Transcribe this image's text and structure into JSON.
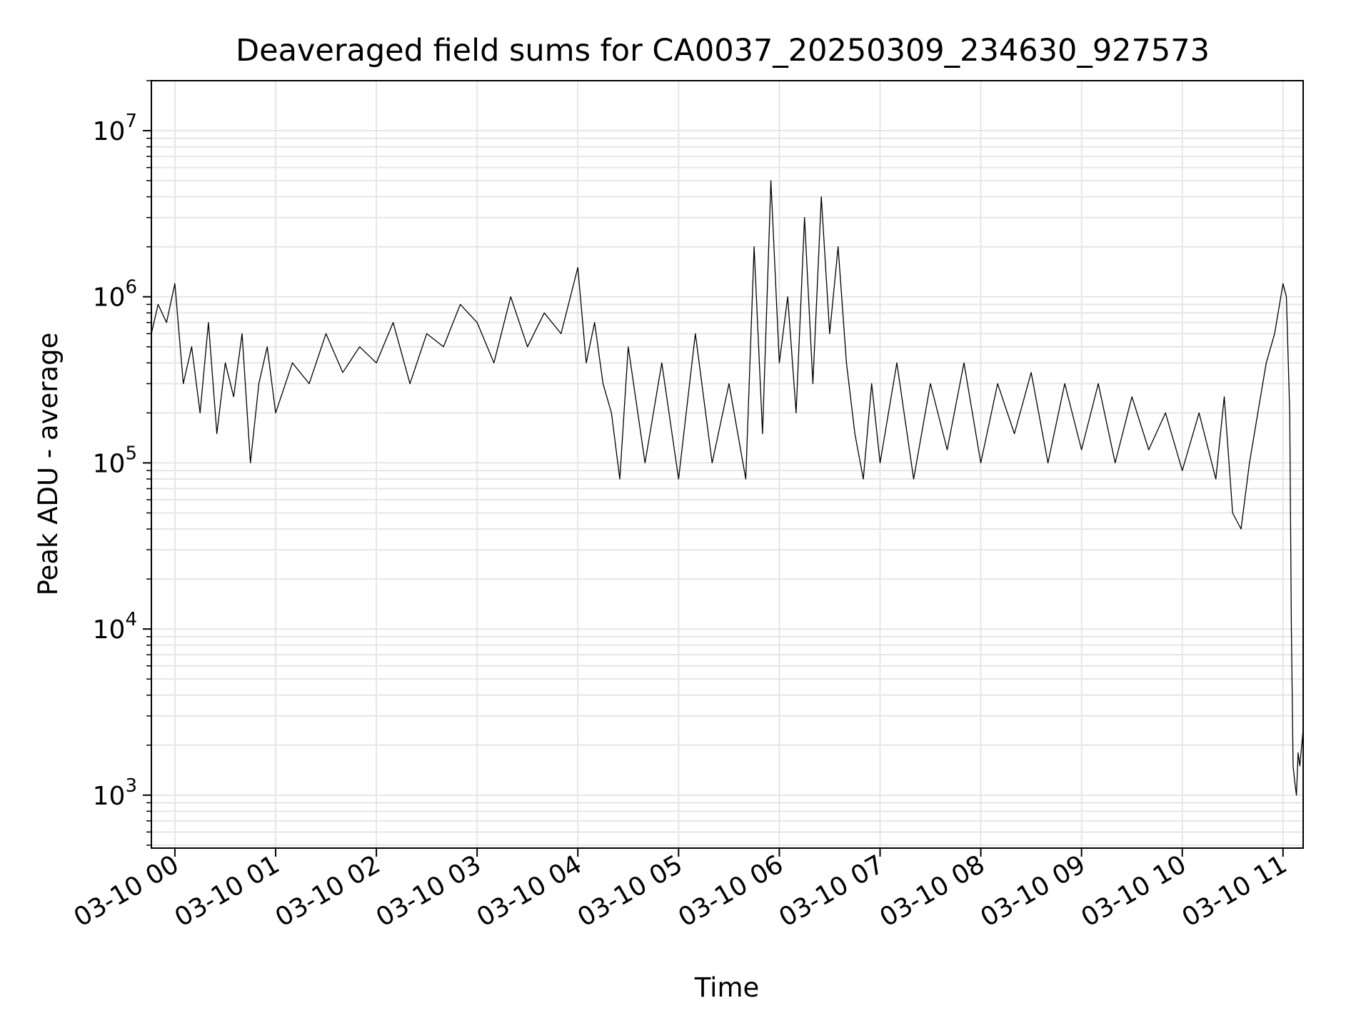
{
  "chart_data": {
    "type": "line",
    "title": "Deaveraged field sums for CA0037_20250309_234630_927573",
    "xlabel": "Time",
    "ylabel": "Peak ADU - average",
    "yscale": "log",
    "ylim": [
      480,
      20000000
    ],
    "xlim": [
      "2025-03-09 23:46",
      "2025-03-10 11:12"
    ],
    "grid": true,
    "line_color": "#000000",
    "x_tick_labels": [
      "03-10 00",
      "03-10 01",
      "03-10 02",
      "03-10 03",
      "03-10 04",
      "03-10 05",
      "03-10 06",
      "03-10 07",
      "03-10 08",
      "03-10 09",
      "03-10 10",
      "03-10 11"
    ],
    "y_ticks": [
      {
        "base": "10",
        "exp": "3",
        "value": 1000
      },
      {
        "base": "10",
        "exp": "4",
        "value": 10000
      },
      {
        "base": "10",
        "exp": "5",
        "value": 100000
      },
      {
        "base": "10",
        "exp": "6",
        "value": 1000000
      },
      {
        "base": "10",
        "exp": "7",
        "value": 10000000
      }
    ],
    "series": [
      {
        "x": [
          "2025-03-09 23:46",
          "2025-03-09 23:50",
          "2025-03-09 23:55",
          "2025-03-10 00:00",
          "2025-03-10 00:05",
          "2025-03-10 00:10",
          "2025-03-10 00:15",
          "2025-03-10 00:20",
          "2025-03-10 00:25",
          "2025-03-10 00:30",
          "2025-03-10 00:35",
          "2025-03-10 00:40",
          "2025-03-10 00:45",
          "2025-03-10 00:50",
          "2025-03-10 00:55",
          "2025-03-10 01:00",
          "2025-03-10 01:10",
          "2025-03-10 01:20",
          "2025-03-10 01:30",
          "2025-03-10 01:40",
          "2025-03-10 01:50",
          "2025-03-10 02:00",
          "2025-03-10 02:10",
          "2025-03-10 02:20",
          "2025-03-10 02:30",
          "2025-03-10 02:40",
          "2025-03-10 02:50",
          "2025-03-10 03:00",
          "2025-03-10 03:10",
          "2025-03-10 03:20",
          "2025-03-10 03:30",
          "2025-03-10 03:40",
          "2025-03-10 03:50",
          "2025-03-10 04:00",
          "2025-03-10 04:05",
          "2025-03-10 04:10",
          "2025-03-10 04:15",
          "2025-03-10 04:20",
          "2025-03-10 04:25",
          "2025-03-10 04:30",
          "2025-03-10 04:40",
          "2025-03-10 04:50",
          "2025-03-10 05:00",
          "2025-03-10 05:10",
          "2025-03-10 05:20",
          "2025-03-10 05:30",
          "2025-03-10 05:40",
          "2025-03-10 05:45",
          "2025-03-10 05:50",
          "2025-03-10 05:55",
          "2025-03-10 06:00",
          "2025-03-10 06:05",
          "2025-03-10 06:10",
          "2025-03-10 06:15",
          "2025-03-10 06:20",
          "2025-03-10 06:25",
          "2025-03-10 06:30",
          "2025-03-10 06:35",
          "2025-03-10 06:40",
          "2025-03-10 06:45",
          "2025-03-10 06:50",
          "2025-03-10 06:55",
          "2025-03-10 07:00",
          "2025-03-10 07:10",
          "2025-03-10 07:20",
          "2025-03-10 07:30",
          "2025-03-10 07:40",
          "2025-03-10 07:50",
          "2025-03-10 08:00",
          "2025-03-10 08:10",
          "2025-03-10 08:20",
          "2025-03-10 08:30",
          "2025-03-10 08:40",
          "2025-03-10 08:50",
          "2025-03-10 09:00",
          "2025-03-10 09:10",
          "2025-03-10 09:20",
          "2025-03-10 09:30",
          "2025-03-10 09:40",
          "2025-03-10 09:50",
          "2025-03-10 10:00",
          "2025-03-10 10:10",
          "2025-03-10 10:20",
          "2025-03-10 10:25",
          "2025-03-10 10:30",
          "2025-03-10 10:35",
          "2025-03-10 10:40",
          "2025-03-10 10:45",
          "2025-03-10 10:50",
          "2025-03-10 10:55",
          "2025-03-10 11:00",
          "2025-03-10 11:02",
          "2025-03-10 11:04",
          "2025-03-10 11:05",
          "2025-03-10 11:06",
          "2025-03-10 11:07",
          "2025-03-10 11:08",
          "2025-03-10 11:09",
          "2025-03-10 11:10",
          "2025-03-10 11:12"
        ],
        "y": [
          600000,
          900000,
          700000,
          1200000,
          300000,
          500000,
          200000,
          700000,
          150000,
          400000,
          250000,
          600000,
          100000,
          300000,
          500000,
          200000,
          400000,
          300000,
          600000,
          350000,
          500000,
          400000,
          700000,
          300000,
          600000,
          500000,
          900000,
          700000,
          400000,
          1000000,
          500000,
          800000,
          600000,
          1500000,
          400000,
          700000,
          300000,
          200000,
          80000,
          500000,
          100000,
          400000,
          80000,
          600000,
          100000,
          300000,
          80000,
          2000000,
          150000,
          5000000,
          400000,
          1000000,
          200000,
          3000000,
          300000,
          4000000,
          600000,
          2000000,
          400000,
          150000,
          80000,
          300000,
          100000,
          400000,
          80000,
          300000,
          120000,
          400000,
          100000,
          300000,
          150000,
          350000,
          100000,
          300000,
          120000,
          300000,
          100000,
          250000,
          120000,
          200000,
          90000,
          200000,
          80000,
          250000,
          50000,
          40000,
          100000,
          200000,
          400000,
          600000,
          1200000,
          1000000,
          200000,
          10000,
          1500,
          1200,
          1000,
          1800,
          1500,
          2500
        ]
      }
    ]
  }
}
